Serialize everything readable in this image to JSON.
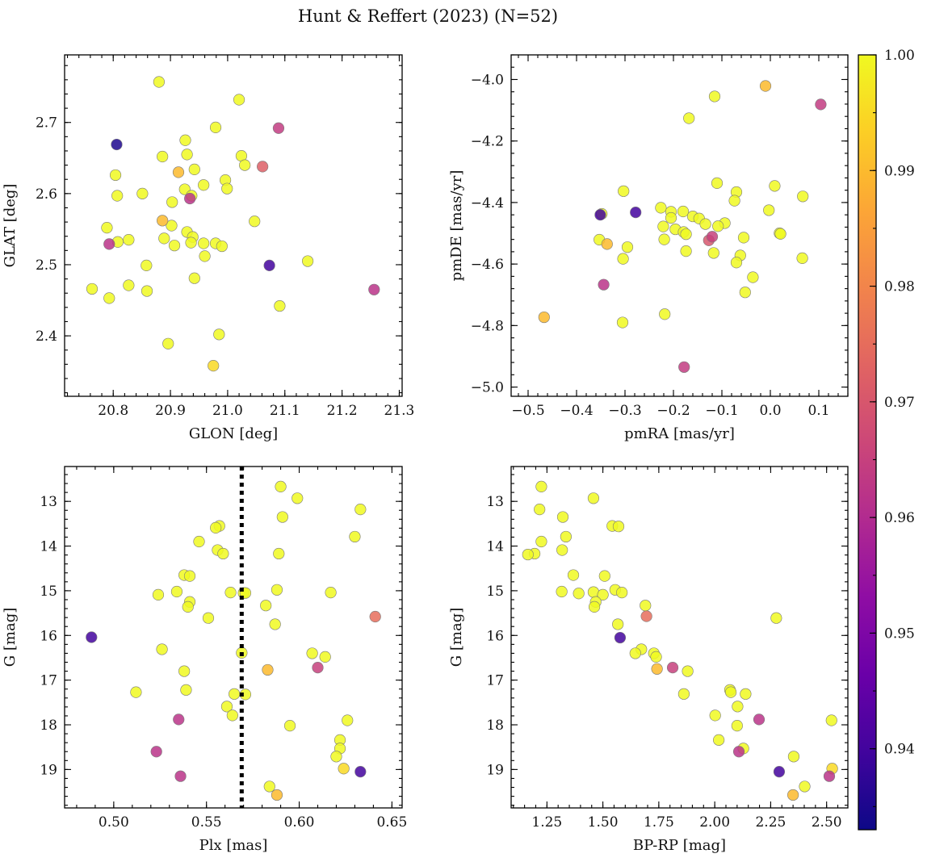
{
  "figure": {
    "title": "Hunt & Reffert (2023) (N=52)"
  },
  "colormap": {
    "name": "plasma",
    "min": 0.933,
    "max": 1.0,
    "ticks": [
      0.94,
      0.95,
      0.96,
      0.97,
      0.98,
      0.99,
      1.0
    ],
    "tick_labels": [
      "0.94",
      "0.95",
      "0.96",
      "0.97",
      "0.98",
      "0.99",
      "1.00"
    ],
    "stops": [
      "#0d0887",
      "#41049d",
      "#6a00a8",
      "#8f0da4",
      "#b12a90",
      "#cc4778",
      "#e16462",
      "#f2844b",
      "#fca636",
      "#fcce25",
      "#f0f921"
    ]
  },
  "chart_data": [
    {
      "type": "scatter",
      "xlabel": "GLON [deg]",
      "ylabel": "GLAT [deg]",
      "xlim": [
        20.715,
        21.305
      ],
      "ylim": [
        2.315,
        2.795
      ],
      "xticks": [
        20.8,
        20.9,
        21.0,
        21.1,
        21.2,
        21.3
      ],
      "xtick_labels": [
        "20.8",
        "20.9",
        "21.0",
        "21.1",
        "21.2",
        "21.3"
      ],
      "yticks": [
        2.4,
        2.5,
        2.6,
        2.7
      ],
      "ytick_labels": [
        "2.4",
        "2.5",
        "2.6",
        "2.7"
      ],
      "points": [
        [
          20.88,
          2.757,
          1.0
        ],
        [
          21.02,
          2.732,
          1.0
        ],
        [
          20.806,
          2.669,
          0.935
        ],
        [
          21.089,
          2.692,
          0.964
        ],
        [
          20.979,
          2.693,
          1.0
        ],
        [
          20.926,
          2.675,
          1.0
        ],
        [
          20.886,
          2.652,
          1.0
        ],
        [
          20.929,
          2.655,
          1.0
        ],
        [
          21.024,
          2.653,
          1.0
        ],
        [
          21.03,
          2.64,
          1.0
        ],
        [
          21.061,
          2.638,
          0.972
        ],
        [
          20.942,
          2.634,
          1.0
        ],
        [
          20.804,
          2.626,
          1.0
        ],
        [
          20.914,
          2.63,
          0.99
        ],
        [
          20.996,
          2.619,
          1.0
        ],
        [
          20.958,
          2.612,
          1.0
        ],
        [
          20.999,
          2.607,
          1.0
        ],
        [
          20.925,
          2.606,
          1.0
        ],
        [
          20.851,
          2.6,
          1.0
        ],
        [
          20.807,
          2.597,
          1.0
        ],
        [
          20.937,
          2.597,
          1.0
        ],
        [
          20.934,
          2.593,
          0.962
        ],
        [
          20.903,
          2.588,
          1.0
        ],
        [
          20.886,
          2.562,
          0.99
        ],
        [
          21.047,
          2.561,
          1.0
        ],
        [
          20.902,
          2.555,
          1.0
        ],
        [
          20.789,
          2.552,
          1.0
        ],
        [
          20.929,
          2.546,
          1.0
        ],
        [
          20.939,
          2.539,
          1.0
        ],
        [
          20.889,
          2.537,
          1.0
        ],
        [
          20.827,
          2.535,
          1.0
        ],
        [
          20.808,
          2.532,
          1.0
        ],
        [
          20.936,
          2.531,
          1.0
        ],
        [
          20.958,
          2.53,
          1.0
        ],
        [
          20.979,
          2.53,
          1.0
        ],
        [
          20.793,
          2.529,
          0.962
        ],
        [
          20.907,
          2.527,
          1.0
        ],
        [
          20.99,
          2.526,
          1.0
        ],
        [
          20.96,
          2.512,
          1.0
        ],
        [
          21.14,
          2.505,
          1.0
        ],
        [
          20.858,
          2.499,
          1.0
        ],
        [
          21.073,
          2.499,
          0.94
        ],
        [
          20.942,
          2.481,
          1.0
        ],
        [
          20.827,
          2.471,
          1.0
        ],
        [
          20.763,
          2.466,
          1.0
        ],
        [
          20.859,
          2.463,
          1.0
        ],
        [
          21.256,
          2.465,
          0.962
        ],
        [
          20.793,
          2.453,
          1.0
        ],
        [
          21.091,
          2.442,
          1.0
        ],
        [
          20.985,
          2.402,
          1.0
        ],
        [
          20.896,
          2.389,
          1.0
        ],
        [
          20.975,
          2.358,
          0.995
        ]
      ]
    },
    {
      "type": "scatter",
      "xlabel": "pmRA [mas/yr]",
      "ylabel": "pmDE [mas/yr]",
      "xlim": [
        -0.535,
        0.16
      ],
      "ylim": [
        -5.03,
        -3.92
      ],
      "xticks": [
        -0.5,
        -0.4,
        -0.3,
        -0.2,
        -0.1,
        0.0,
        0.1
      ],
      "xtick_labels": [
        "−0.5",
        "−0.4",
        "−0.3",
        "−0.2",
        "−0.1",
        "0.0",
        "0.1"
      ],
      "yticks": [
        -5.0,
        -4.8,
        -4.6,
        -4.4,
        -4.2,
        -4.0
      ],
      "ytick_labels": [
        "−5.0",
        "−4.8",
        "−4.6",
        "−4.4",
        "−4.2",
        "−4.0"
      ],
      "points": [
        [
          -0.01,
          -4.021,
          0.99
        ],
        [
          0.104,
          -4.081,
          0.964
        ],
        [
          -0.115,
          -4.055,
          1.0
        ],
        [
          -0.168,
          -4.126,
          1.0
        ],
        [
          -0.303,
          -4.363,
          1.0
        ],
        [
          -0.11,
          -4.337,
          1.0
        ],
        [
          0.009,
          -4.346,
          1.0
        ],
        [
          -0.07,
          -4.366,
          1.0
        ],
        [
          0.067,
          -4.38,
          1.0
        ],
        [
          -0.074,
          -4.394,
          1.0
        ],
        [
          -0.226,
          -4.417,
          1.0
        ],
        [
          -0.205,
          -4.43,
          1.0
        ],
        [
          -0.18,
          -4.429,
          1.0
        ],
        [
          -0.16,
          -4.445,
          1.0
        ],
        [
          -0.003,
          -4.425,
          1.0
        ],
        [
          -0.278,
          -4.432,
          0.94
        ],
        [
          -0.351,
          -4.44,
          0.94
        ],
        [
          -0.348,
          -4.437,
          1.0
        ],
        [
          -0.147,
          -4.452,
          1.0
        ],
        [
          -0.205,
          -4.45,
          1.0
        ],
        [
          -0.134,
          -4.47,
          1.0
        ],
        [
          -0.094,
          -4.467,
          1.0
        ],
        [
          -0.221,
          -4.478,
          1.0
        ],
        [
          -0.108,
          -4.477,
          1.0
        ],
        [
          -0.196,
          -4.487,
          1.0
        ],
        [
          -0.179,
          -4.496,
          1.0
        ],
        [
          -0.174,
          -4.503,
          1.0
        ],
        [
          0.019,
          -4.5,
          1.0
        ],
        [
          0.021,
          -4.502,
          1.0
        ],
        [
          -0.353,
          -4.521,
          1.0
        ],
        [
          -0.219,
          -4.52,
          1.0
        ],
        [
          -0.055,
          -4.514,
          1.0
        ],
        [
          -0.127,
          -4.523,
          0.97
        ],
        [
          -0.12,
          -4.511,
          0.965
        ],
        [
          -0.337,
          -4.535,
          0.99
        ],
        [
          -0.295,
          -4.545,
          1.0
        ],
        [
          -0.174,
          -4.558,
          1.0
        ],
        [
          -0.117,
          -4.564,
          1.0
        ],
        [
          -0.062,
          -4.572,
          1.0
        ],
        [
          0.066,
          -4.581,
          1.0
        ],
        [
          -0.304,
          -4.583,
          1.0
        ],
        [
          -0.07,
          -4.595,
          1.0
        ],
        [
          -0.036,
          -4.643,
          1.0
        ],
        [
          -0.344,
          -4.667,
          0.962
        ],
        [
          -0.052,
          -4.692,
          1.0
        ],
        [
          -0.218,
          -4.763,
          1.0
        ],
        [
          -0.467,
          -4.773,
          0.99
        ],
        [
          -0.305,
          -4.79,
          1.0
        ],
        [
          -0.178,
          -4.935,
          0.964
        ]
      ]
    },
    {
      "type": "scatter",
      "xlabel": "Plx [mas]",
      "ylabel": "G [mag]",
      "xlim": [
        0.4735,
        0.6555
      ],
      "ylim": [
        19.86,
        12.22
      ],
      "y_inverted": true,
      "vline_x": 0.569,
      "xticks": [
        0.5,
        0.55,
        0.6,
        0.65
      ],
      "xtick_labels": [
        "0.50",
        "0.55",
        "0.60",
        "0.65"
      ],
      "yticks": [
        13,
        14,
        15,
        16,
        17,
        18,
        19
      ],
      "ytick_labels": [
        "13",
        "14",
        "15",
        "16",
        "17",
        "18",
        "19"
      ],
      "points": [
        [
          0.59,
          12.67,
          1.0
        ],
        [
          0.599,
          12.93,
          1.0
        ],
        [
          0.633,
          13.18,
          1.0
        ],
        [
          0.591,
          13.35,
          1.0
        ],
        [
          0.557,
          13.55,
          1.0
        ],
        [
          0.555,
          13.59,
          1.0
        ],
        [
          0.63,
          13.79,
          1.0
        ],
        [
          0.546,
          13.9,
          1.0
        ],
        [
          0.556,
          14.09,
          1.0
        ],
        [
          0.559,
          14.17,
          1.0
        ],
        [
          0.589,
          14.17,
          1.0
        ],
        [
          0.538,
          14.65,
          1.0
        ],
        [
          0.541,
          14.67,
          1.0
        ],
        [
          0.588,
          14.98,
          1.0
        ],
        [
          0.534,
          15.02,
          1.0
        ],
        [
          0.563,
          15.04,
          1.0
        ],
        [
          0.617,
          15.04,
          1.0
        ],
        [
          0.57,
          15.05,
          1.0
        ],
        [
          0.571,
          15.05,
          1.0
        ],
        [
          0.524,
          15.09,
          1.0
        ],
        [
          0.541,
          15.25,
          1.0
        ],
        [
          0.582,
          15.33,
          1.0
        ],
        [
          0.54,
          15.36,
          1.0
        ],
        [
          0.641,
          15.58,
          0.975
        ],
        [
          0.551,
          15.61,
          1.0
        ],
        [
          0.587,
          15.75,
          1.0
        ],
        [
          0.488,
          16.04,
          0.94
        ],
        [
          0.526,
          16.31,
          1.0
        ],
        [
          0.569,
          16.39,
          1.0
        ],
        [
          0.607,
          16.4,
          1.0
        ],
        [
          0.614,
          16.48,
          1.0
        ],
        [
          0.61,
          16.72,
          0.965
        ],
        [
          0.583,
          16.77,
          0.99
        ],
        [
          0.538,
          16.8,
          1.0
        ],
        [
          0.539,
          17.22,
          1.0
        ],
        [
          0.512,
          17.27,
          1.0
        ],
        [
          0.565,
          17.31,
          1.0
        ],
        [
          0.571,
          17.32,
          1.0
        ],
        [
          0.561,
          17.59,
          1.0
        ],
        [
          0.564,
          17.79,
          1.0
        ],
        [
          0.535,
          17.88,
          0.962
        ],
        [
          0.626,
          17.9,
          1.0
        ],
        [
          0.595,
          18.02,
          1.0
        ],
        [
          0.622,
          18.34,
          1.0
        ],
        [
          0.622,
          18.53,
          1.0
        ],
        [
          0.523,
          18.6,
          0.962
        ],
        [
          0.62,
          18.71,
          1.0
        ],
        [
          0.624,
          18.98,
          0.995
        ],
        [
          0.633,
          19.05,
          0.94
        ],
        [
          0.536,
          19.15,
          0.962
        ],
        [
          0.584,
          19.38,
          1.0
        ],
        [
          0.588,
          19.57,
          0.99
        ]
      ]
    },
    {
      "type": "scatter",
      "xlabel": "BP-RP [mag]",
      "ylabel": "G [mag]",
      "xlim": [
        1.09,
        2.595
      ],
      "ylim": [
        19.86,
        12.22
      ],
      "y_inverted": true,
      "xticks": [
        1.25,
        1.5,
        1.75,
        2.0,
        2.25,
        2.5
      ],
      "xtick_labels": [
        "1.25",
        "1.50",
        "1.75",
        "2.00",
        "2.25",
        "2.50"
      ],
      "yticks": [
        13,
        14,
        15,
        16,
        17,
        18,
        19
      ],
      "ytick_labels": [
        "13",
        "14",
        "15",
        "16",
        "17",
        "18",
        "19"
      ],
      "points": [
        [
          1.225,
          12.67,
          1.0
        ],
        [
          1.458,
          12.93,
          1.0
        ],
        [
          1.217,
          13.18,
          1.0
        ],
        [
          1.321,
          13.35,
          1.0
        ],
        [
          1.542,
          13.55,
          1.0
        ],
        [
          1.57,
          13.56,
          1.0
        ],
        [
          1.335,
          13.79,
          1.0
        ],
        [
          1.225,
          13.9,
          1.0
        ],
        [
          1.318,
          14.09,
          1.0
        ],
        [
          1.195,
          14.17,
          1.0
        ],
        [
          1.165,
          14.19,
          1.0
        ],
        [
          1.368,
          14.65,
          1.0
        ],
        [
          1.508,
          14.67,
          1.0
        ],
        [
          1.555,
          14.98,
          1.0
        ],
        [
          1.316,
          15.02,
          1.0
        ],
        [
          1.458,
          15.03,
          1.0
        ],
        [
          1.585,
          15.04,
          1.0
        ],
        [
          1.392,
          15.06,
          1.0
        ],
        [
          1.5,
          15.09,
          1.0
        ],
        [
          1.468,
          15.25,
          1.0
        ],
        [
          1.462,
          15.36,
          1.0
        ],
        [
          1.69,
          15.33,
          1.0
        ],
        [
          1.695,
          15.57,
          0.975
        ],
        [
          2.275,
          15.61,
          1.0
        ],
        [
          1.567,
          15.75,
          1.0
        ],
        [
          1.577,
          16.05,
          0.94
        ],
        [
          1.672,
          16.31,
          1.0
        ],
        [
          1.645,
          16.4,
          1.0
        ],
        [
          1.728,
          16.4,
          1.0
        ],
        [
          1.738,
          16.48,
          1.0
        ],
        [
          1.812,
          16.72,
          0.965
        ],
        [
          1.742,
          16.75,
          0.99
        ],
        [
          1.879,
          16.8,
          1.0
        ],
        [
          2.068,
          17.22,
          1.0
        ],
        [
          2.072,
          17.27,
          1.0
        ],
        [
          2.138,
          17.31,
          1.0
        ],
        [
          1.862,
          17.31,
          1.0
        ],
        [
          2.102,
          17.59,
          1.0
        ],
        [
          2.002,
          17.79,
          1.0
        ],
        [
          2.198,
          17.88,
          0.962
        ],
        [
          2.522,
          17.9,
          1.0
        ],
        [
          2.1,
          18.02,
          1.0
        ],
        [
          2.018,
          18.34,
          1.0
        ],
        [
          2.128,
          18.53,
          1.0
        ],
        [
          2.108,
          18.6,
          0.962
        ],
        [
          2.353,
          18.71,
          1.0
        ],
        [
          2.525,
          18.98,
          0.995
        ],
        [
          2.288,
          19.05,
          0.94
        ],
        [
          2.512,
          19.15,
          0.962
        ],
        [
          2.402,
          19.38,
          1.0
        ],
        [
          2.35,
          19.57,
          0.99
        ]
      ]
    }
  ]
}
